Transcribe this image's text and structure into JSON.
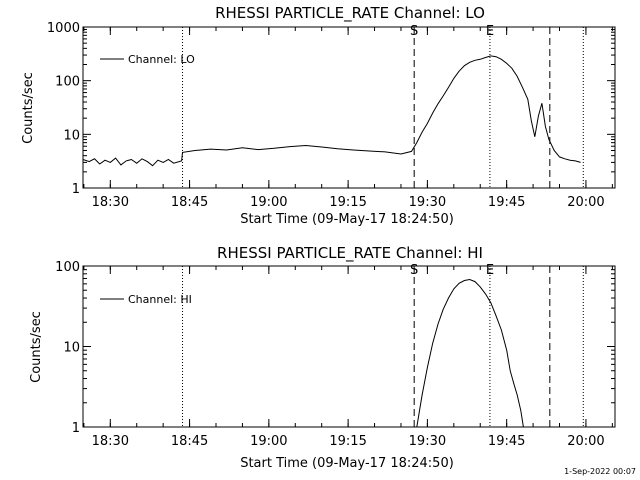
{
  "footer_date": "1-Sep-2022 00:07",
  "chart_data": [
    {
      "type": "line",
      "title": "RHESSI PARTICLE_RATE Channel: LO",
      "xlabel": "Start Time (09-May-17 18:24:50)",
      "ylabel": "Counts/sec",
      "xlim": [
        "18:24:50",
        "20:05:30"
      ],
      "ylim": [
        1,
        1000
      ],
      "yscale": "log",
      "x_ticks": [
        "18:30",
        "18:45",
        "19:00",
        "19:15",
        "19:30",
        "19:45",
        "20:00"
      ],
      "y_ticks": [
        "1",
        "10",
        "100",
        "1000"
      ],
      "legend": {
        "location": "top-left",
        "entries": [
          "Channel: LO"
        ]
      },
      "markers": [
        {
          "time": "19:27:30",
          "style": "dashed",
          "label": "S"
        },
        {
          "time": "19:41:50",
          "style": "dotted",
          "label": "E"
        },
        {
          "time": "19:53:10",
          "style": "dashed",
          "label": ""
        },
        {
          "time": "19:59:30",
          "style": "dotted",
          "label": ""
        },
        {
          "time": "18:43:40",
          "style": "dotted",
          "label": ""
        }
      ],
      "series": [
        {
          "name": "Channel: LO",
          "x": [
            "18:24:50",
            "18:26:00",
            "18:27:00",
            "18:28:00",
            "18:29:00",
            "18:30:00",
            "18:31:00",
            "18:32:00",
            "18:33:00",
            "18:34:00",
            "18:35:00",
            "18:36:00",
            "18:37:00",
            "18:38:00",
            "18:39:00",
            "18:40:00",
            "18:41:00",
            "18:42:00",
            "18:43:30",
            "18:43:40",
            "18:46:00",
            "18:49:00",
            "18:52:00",
            "18:55:00",
            "18:58:00",
            "19:01:00",
            "19:04:00",
            "19:07:00",
            "19:10:00",
            "19:13:00",
            "19:16:00",
            "19:19:00",
            "19:22:00",
            "19:25:00",
            "19:27:00",
            "19:28:00",
            "19:29:00",
            "19:30:00",
            "19:31:00",
            "19:32:00",
            "19:33:00",
            "19:34:00",
            "19:35:00",
            "19:36:00",
            "19:37:00",
            "19:38:00",
            "19:39:00",
            "19:40:00",
            "19:41:00",
            "19:42:00",
            "19:43:00",
            "19:44:00",
            "19:45:00",
            "19:46:00",
            "19:47:00",
            "19:48:00",
            "19:49:00",
            "19:49:40",
            "19:50:20",
            "19:51:00",
            "19:51:40",
            "19:52:20",
            "19:53:00",
            "19:54:00",
            "19:55:00",
            "19:56:00",
            "19:57:00",
            "19:58:00",
            "19:59:00"
          ],
          "values": [
            3.4,
            3.1,
            3.5,
            2.8,
            3.3,
            3.0,
            3.6,
            2.7,
            3.2,
            3.4,
            2.9,
            3.5,
            3.1,
            2.6,
            3.3,
            3.0,
            3.4,
            2.9,
            3.2,
            4.6,
            5.0,
            5.3,
            5.1,
            5.6,
            5.2,
            5.5,
            5.9,
            6.2,
            5.8,
            5.4,
            5.1,
            4.9,
            4.7,
            4.3,
            4.8,
            7.0,
            11,
            16,
            25,
            37,
            52,
            75,
            110,
            150,
            190,
            220,
            240,
            250,
            270,
            290,
            280,
            250,
            210,
            170,
            120,
            75,
            45,
            18,
            9,
            22,
            38,
            14,
            8,
            5,
            3.8,
            3.5,
            3.3,
            3.2,
            3.0
          ]
        }
      ]
    },
    {
      "type": "line",
      "title": "RHESSI PARTICLE_RATE Channel: HI",
      "xlabel": "Start Time (09-May-17 18:24:50)",
      "ylabel": "Counts/sec",
      "xlim": [
        "18:24:50",
        "20:05:30"
      ],
      "ylim": [
        1,
        100
      ],
      "yscale": "log",
      "x_ticks": [
        "18:30",
        "18:45",
        "19:00",
        "19:15",
        "19:30",
        "19:45",
        "20:00"
      ],
      "y_ticks": [
        "1",
        "10",
        "100"
      ],
      "legend": {
        "location": "top-left",
        "entries": [
          "Channel: HI"
        ]
      },
      "markers": [
        {
          "time": "19:27:30",
          "style": "dashed",
          "label": "S"
        },
        {
          "time": "19:41:50",
          "style": "dotted",
          "label": "E"
        },
        {
          "time": "19:53:10",
          "style": "dashed",
          "label": ""
        },
        {
          "time": "19:59:30",
          "style": "dotted",
          "label": ""
        },
        {
          "time": "18:43:40",
          "style": "dotted",
          "label": ""
        }
      ],
      "series": [
        {
          "name": "Channel: HI",
          "x": [
            "19:28:00",
            "19:29:00",
            "19:30:00",
            "19:31:00",
            "19:32:00",
            "19:33:00",
            "19:34:00",
            "19:35:00",
            "19:36:00",
            "19:37:00",
            "19:38:00",
            "19:39:00",
            "19:40:00",
            "19:41:00",
            "19:42:00",
            "19:43:00",
            "19:44:00",
            "19:45:00",
            "19:45:40",
            "19:46:20",
            "19:47:00",
            "19:47:40",
            "19:48:10"
          ],
          "values": [
            1.0,
            2.5,
            5.5,
            11,
            19,
            29,
            40,
            52,
            61,
            66,
            68,
            64,
            55,
            45,
            35,
            24,
            16,
            9,
            5,
            3.5,
            2.5,
            1.6,
            1.0
          ]
        }
      ]
    }
  ]
}
